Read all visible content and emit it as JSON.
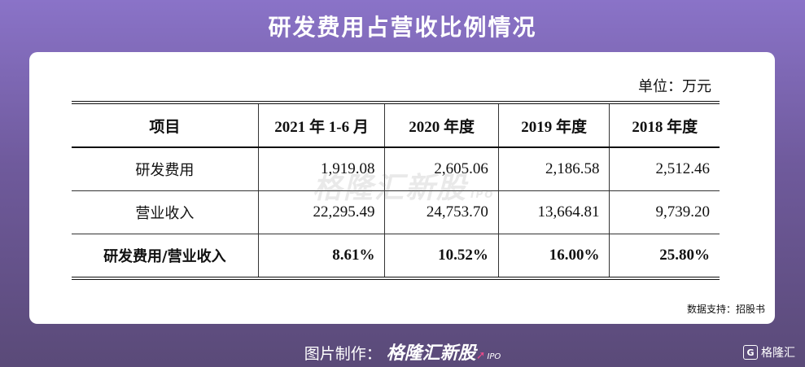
{
  "title": "研发费用占营收比例情况",
  "unit": "单位：万元",
  "table": {
    "headers": [
      "项目",
      "2021 年 1-6 月",
      "2020 年度",
      "2019 年度",
      "2018 年度"
    ],
    "rows": [
      {
        "label": "研发费用",
        "values": [
          "1,919.08",
          "2,605.06",
          "2,186.58",
          "2,512.46"
        ]
      },
      {
        "label": "营业收入",
        "values": [
          "22,295.49",
          "24,753.70",
          "13,664.81",
          "9,739.20"
        ]
      },
      {
        "label": "研发费用/营业收入",
        "values": [
          "8.61%",
          "10.52%",
          "16.00%",
          "25.80%"
        ]
      }
    ]
  },
  "watermark": {
    "text": "格隆汇新股",
    "sub": "IPO"
  },
  "source": "数据支持：招股书",
  "footer": {
    "prefix": "图片制作：",
    "brand": "格隆汇新股",
    "brand_sub": "IPO"
  },
  "corner_logo": {
    "mark": "G",
    "text": "格隆汇"
  }
}
